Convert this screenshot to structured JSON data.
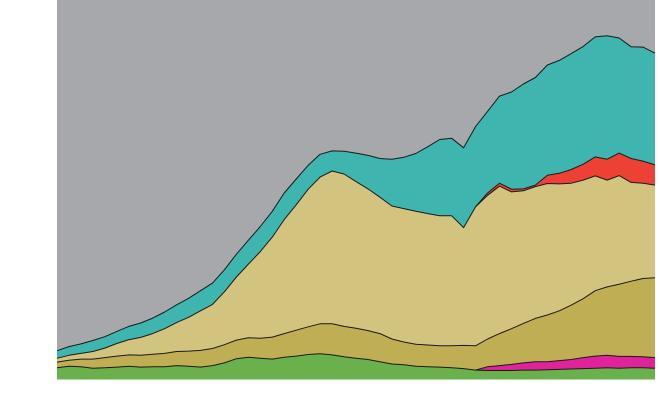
{
  "chart_data": {
    "type": "area",
    "stacked": true,
    "title": "",
    "xlabel": "",
    "ylabel": "",
    "grid": false,
    "legend": "none",
    "ylim": [
      0,
      100
    ],
    "x": [
      0,
      2,
      4,
      6,
      8,
      10,
      12,
      14,
      16,
      18,
      20,
      22,
      24,
      26,
      28,
      30,
      32,
      34,
      36,
      38,
      40,
      42,
      44,
      46,
      48,
      50,
      52,
      54,
      56,
      58,
      60,
      62,
      64,
      66,
      68,
      70,
      72,
      74,
      76,
      78,
      80,
      82,
      84,
      86,
      88,
      90,
      92,
      94,
      96,
      98,
      100
    ],
    "background_color": "#a7a8ab",
    "series": [
      {
        "color": "#6ab04c",
        "values": [
          3.2,
          3.6,
          3.5,
          3.1,
          3.2,
          3.4,
          3.6,
          3.4,
          3.5,
          3.5,
          3.8,
          3.6,
          3.4,
          3.8,
          4.5,
          5.6,
          6.0,
          5.7,
          5.5,
          6.0,
          6.3,
          6.7,
          6.9,
          6.6,
          6.1,
          5.7,
          5.4,
          4.8,
          4.2,
          4.0,
          3.6,
          3.5,
          3.4,
          3.2,
          3.0,
          2.6,
          2.5,
          2.5,
          2.5,
          2.6,
          2.6,
          2.7,
          2.8,
          2.9,
          3.0,
          3.1,
          3.2,
          3.1,
          3.2,
          3.2,
          3.1
        ]
      },
      {
        "color": "#e0239a",
        "values": [
          0,
          0,
          0,
          0,
          0,
          0,
          0,
          0,
          0,
          0,
          0,
          0,
          0,
          0,
          0,
          0,
          0,
          0,
          0,
          0,
          0,
          0,
          0,
          0,
          0,
          0,
          0,
          0,
          0,
          0,
          0,
          0,
          0,
          0,
          0,
          0,
          1.0,
          1.3,
          1.6,
          1.9,
          2.2,
          2.1,
          2.3,
          2.5,
          2.9,
          3.2,
          3.3,
          3.1,
          3.0,
          2.9,
          2.8
        ]
      },
      {
        "color": "#bfae54",
        "values": [
          1.5,
          1.6,
          2.0,
          2.4,
          2.7,
          2.9,
          3.0,
          3.1,
          3.3,
          3.5,
          3.7,
          4.0,
          4.4,
          4.5,
          4.8,
          4.9,
          5.1,
          5.3,
          5.8,
          6.2,
          6.8,
          7.3,
          7.9,
          8.2,
          8.0,
          7.9,
          7.6,
          7.4,
          6.6,
          6.0,
          5.8,
          5.7,
          5.6,
          5.8,
          6.1,
          6.4,
          7.3,
          8.4,
          9.4,
          10.4,
          11.4,
          12.3,
          13.1,
          14.3,
          15.5,
          17.2,
          18.0,
          19.0,
          19.8,
          20.6,
          21.0
        ]
      },
      {
        "color": "#d2c47e",
        "values": [
          1.0,
          1.3,
          1.5,
          2.0,
          2.5,
          3.3,
          4.0,
          4.7,
          5.4,
          6.5,
          7.6,
          8.9,
          10.4,
          11.6,
          13.9,
          16.6,
          19.4,
          22.8,
          26.3,
          30.0,
          33.0,
          36.2,
          38.6,
          40.2,
          40.1,
          38.6,
          37.3,
          35.9,
          35.0,
          35.1,
          35.0,
          34.6,
          34.2,
          34.2,
          31.0,
          36.6,
          37.8,
          38.8,
          36.0,
          34.9,
          34.7,
          34.6,
          33.4,
          32.1,
          31.2,
          30.2,
          28.1,
          28.6,
          26.0,
          25.1,
          24.4
        ]
      },
      {
        "color": "#ee4136",
        "values": [
          0,
          0,
          0,
          0,
          0,
          0,
          0,
          0,
          0,
          0,
          0,
          0,
          0,
          0,
          0,
          0,
          0,
          0,
          0,
          0,
          0,
          0,
          0,
          0,
          0,
          0,
          0,
          0,
          0,
          0,
          0,
          0,
          0,
          0,
          0,
          0,
          0.6,
          0.8,
          0.7,
          0.5,
          0.4,
          2.2,
          2.8,
          3.6,
          4.2,
          5.0,
          5.5,
          5.9,
          6.3,
          5.8,
          5.3
        ]
      },
      {
        "color": "#3eb5af",
        "values": [
          2.0,
          2.3,
          2.5,
          2.9,
          3.0,
          3.2,
          3.5,
          3.8,
          4.1,
          4.4,
          4.7,
          5.0,
          5.3,
          5.6,
          5.8,
          6.0,
          6.3,
          6.6,
          6.8,
          7.0,
          6.8,
          6.3,
          6.0,
          5.3,
          6.0,
          7.5,
          8.8,
          10.2,
          12.3,
          13.5,
          15.2,
          17.6,
          20.1,
          20.4,
          21.0,
          21.1,
          21.5,
          22.9,
          25.6,
          27.6,
          28.3,
          29.0,
          29.7,
          30.5,
          31.0,
          31.6,
          32.5,
          30.3,
          29.4,
          30.0,
          29.4
        ]
      }
    ]
  }
}
